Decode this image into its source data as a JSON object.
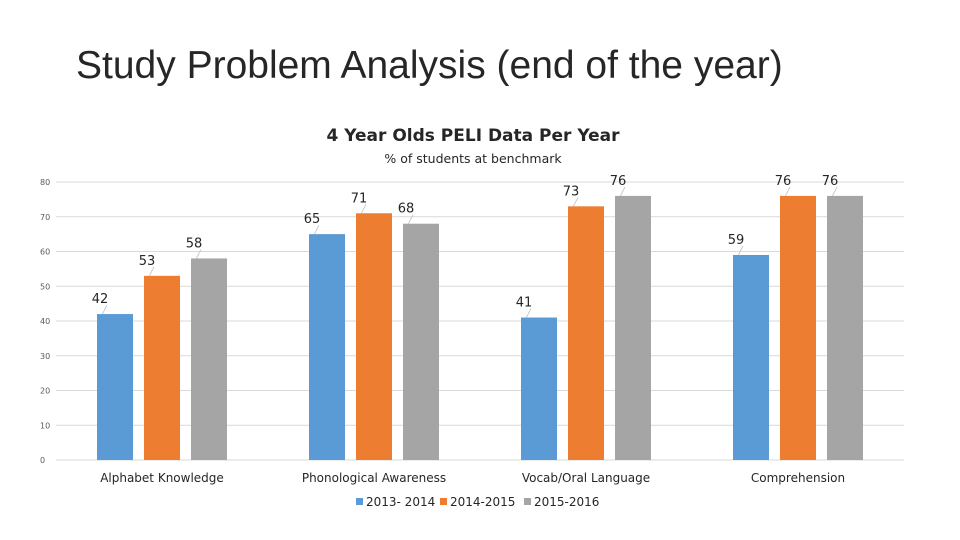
{
  "slide": {
    "title": "Study Problem Analysis (end of the year)"
  },
  "chart_data": {
    "type": "bar",
    "title": "4 Year Olds PELI Data Per Year",
    "subtitle": "% of students at benchmark",
    "xlabel": "",
    "ylabel": "",
    "ylim": [
      0,
      80
    ],
    "yticks": [
      0,
      10,
      20,
      30,
      40,
      50,
      60,
      70,
      80
    ],
    "grid": true,
    "legend_position": "bottom",
    "categories": [
      "Alphabet Knowledge",
      "Phonological Awareness",
      "Vocab/Oral Language",
      "Comprehension"
    ],
    "series": [
      {
        "name": "2013- 2014",
        "color": "#5b9bd5",
        "values": [
          42,
          65,
          41,
          59
        ]
      },
      {
        "name": "2014-2015",
        "color": "#ed7d31",
        "values": [
          53,
          71,
          73,
          76
        ]
      },
      {
        "name": "2015-2016",
        "color": "#a5a5a5",
        "values": [
          58,
          68,
          76,
          76
        ]
      }
    ]
  }
}
